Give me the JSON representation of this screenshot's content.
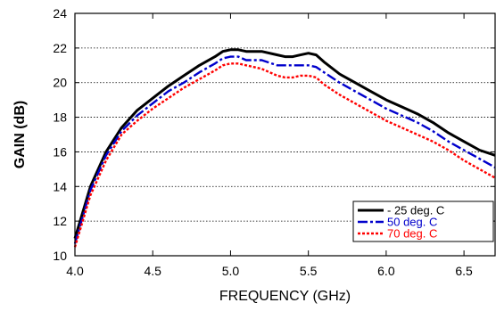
{
  "chart_data": {
    "type": "line",
    "title": "",
    "xlabel": "FREQUENCY (GHz)",
    "ylabel": "GAIN (dB)",
    "xlim": [
      4.0,
      6.7
    ],
    "ylim": [
      10,
      24
    ],
    "x_ticks": [
      "4.0",
      "4.5",
      "5.0",
      "5.5",
      "6.0",
      "6.5"
    ],
    "y_ticks": [
      "10",
      "12",
      "14",
      "16",
      "18",
      "20",
      "22",
      "24"
    ],
    "grid": "horizontal dotted",
    "legend_position": "bottom-right",
    "series": [
      {
        "name": "- 25 deg. C",
        "color": "#000000",
        "style": "solid",
        "x": [
          4.0,
          4.1,
          4.2,
          4.3,
          4.4,
          4.5,
          4.6,
          4.7,
          4.8,
          4.9,
          4.95,
          5.0,
          5.05,
          5.1,
          5.2,
          5.3,
          5.35,
          5.4,
          5.45,
          5.5,
          5.55,
          5.6,
          5.7,
          5.8,
          5.9,
          6.0,
          6.1,
          6.2,
          6.3,
          6.4,
          6.5,
          6.6,
          6.7
        ],
        "values": [
          11.0,
          14.0,
          16.0,
          17.4,
          18.4,
          19.1,
          19.8,
          20.4,
          21.0,
          21.5,
          21.8,
          21.9,
          21.9,
          21.8,
          21.8,
          21.6,
          21.5,
          21.5,
          21.6,
          21.7,
          21.6,
          21.2,
          20.5,
          20.0,
          19.5,
          19.0,
          18.6,
          18.2,
          17.7,
          17.1,
          16.6,
          16.1,
          15.8
        ]
      },
      {
        "name": "50 deg. C",
        "color": "#0000cc",
        "style": "dash-dot",
        "x": [
          4.0,
          4.1,
          4.2,
          4.3,
          4.4,
          4.5,
          4.6,
          4.7,
          4.8,
          4.9,
          4.95,
          5.0,
          5.05,
          5.1,
          5.2,
          5.3,
          5.35,
          5.4,
          5.45,
          5.5,
          5.55,
          5.6,
          5.7,
          5.8,
          5.9,
          6.0,
          6.1,
          6.2,
          6.3,
          6.4,
          6.5,
          6.6,
          6.7
        ],
        "values": [
          10.7,
          13.8,
          15.8,
          17.2,
          18.1,
          18.8,
          19.5,
          20.0,
          20.6,
          21.1,
          21.4,
          21.5,
          21.5,
          21.3,
          21.3,
          21.0,
          21.0,
          21.0,
          21.0,
          21.0,
          20.9,
          20.6,
          20.0,
          19.5,
          19.0,
          18.5,
          18.1,
          17.7,
          17.2,
          16.6,
          16.1,
          15.6,
          15.1
        ]
      },
      {
        "name": "70 deg. C",
        "color": "#ff0000",
        "style": "dotted",
        "x": [
          4.0,
          4.1,
          4.2,
          4.3,
          4.4,
          4.5,
          4.6,
          4.7,
          4.8,
          4.9,
          4.95,
          5.0,
          5.05,
          5.1,
          5.2,
          5.3,
          5.35,
          5.4,
          5.45,
          5.5,
          5.55,
          5.6,
          5.7,
          5.8,
          5.9,
          6.0,
          6.1,
          6.2,
          6.3,
          6.4,
          6.5,
          6.6,
          6.7
        ],
        "values": [
          10.5,
          13.5,
          15.5,
          17.0,
          17.8,
          18.5,
          19.1,
          19.7,
          20.2,
          20.7,
          21.0,
          21.1,
          21.1,
          21.0,
          20.8,
          20.4,
          20.3,
          20.3,
          20.4,
          20.4,
          20.3,
          19.9,
          19.3,
          18.8,
          18.3,
          17.8,
          17.4,
          17.0,
          16.6,
          16.1,
          15.5,
          15.0,
          14.5
        ]
      }
    ]
  }
}
